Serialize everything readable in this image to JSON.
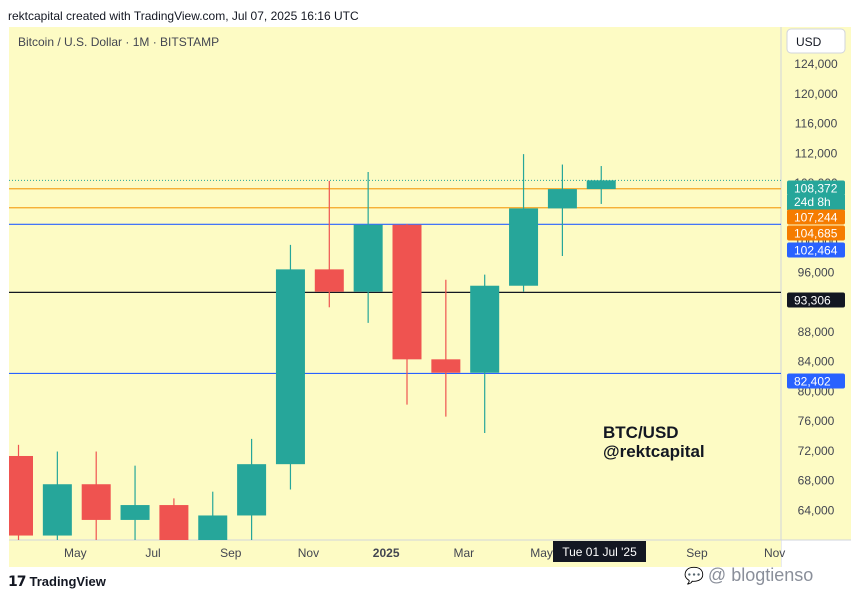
{
  "header": {
    "credit": "rektcapital created with TradingView.com, Jul 07, 2025 16:16 UTC"
  },
  "chart": {
    "symbol_label": "Bitcoin / U.S. Dollar · 1M · BITSTAMP",
    "currency_label": "USD",
    "annotation_line1": "BTC/USD",
    "annotation_line2": "@rektcapital",
    "crosshair_date": "Tue 01 Jul '25",
    "countdown": "24d 8h"
  },
  "footer": {
    "brand": "TradingView",
    "watermark": "@ blogtienso"
  },
  "colors": {
    "background": "#fdfbc4",
    "up": "#26a69a",
    "down": "#ef5350",
    "orange_line": "#f5a623",
    "blue_line": "#2962ff",
    "black_line": "#131722",
    "price_label": "#26a69a",
    "orange_label": "#f57c00"
  },
  "chart_data": {
    "type": "candlestick",
    "title": "Bitcoin / U.S. Dollar · 1M · BITSTAMP",
    "ylabel": "USD",
    "ylim": [
      60000,
      129000
    ],
    "y_ticks": [
      64000,
      68000,
      72000,
      76000,
      80000,
      84000,
      88000,
      92000,
      96000,
      100000,
      104000,
      108000,
      112000,
      116000,
      120000,
      124000
    ],
    "y_tick_labels": [
      "64,000",
      "68,000",
      "72,000",
      "76,000",
      "80,000",
      "84,000",
      "88,000",
      "92,000",
      "96,000",
      "100,000",
      "104,000",
      "108,000",
      "112,000",
      "116,000",
      "120,000",
      "124,000"
    ],
    "x_tick_labels": [
      {
        "label": "May",
        "index": 1
      },
      {
        "label": "Jul",
        "index": 3
      },
      {
        "label": "Sep",
        "index": 5
      },
      {
        "label": "Nov",
        "index": 7
      },
      {
        "label": "2025",
        "index": 9
      },
      {
        "label": "Mar",
        "index": 11
      },
      {
        "label": "May",
        "index": 13
      },
      {
        "label": "Sep",
        "index": 17
      },
      {
        "label": "Nov",
        "index": 19
      }
    ],
    "candles": [
      {
        "month": "Apr 2024",
        "open": 71300,
        "high": 72800,
        "low": 59600,
        "close": 60600
      },
      {
        "month": "May 2024",
        "open": 60600,
        "high": 71900,
        "low": 56500,
        "close": 67500
      },
      {
        "month": "Jun 2024",
        "open": 67500,
        "high": 71900,
        "low": 58400,
        "close": 62700
      },
      {
        "month": "Jul 2024",
        "open": 62700,
        "high": 70000,
        "low": 53500,
        "close": 64700
      },
      {
        "month": "Aug 2024",
        "open": 64700,
        "high": 65600,
        "low": 49000,
        "close": 59000
      },
      {
        "month": "Sep 2024",
        "open": 59000,
        "high": 66500,
        "low": 52500,
        "close": 63300
      },
      {
        "month": "Oct 2024",
        "open": 63300,
        "high": 73600,
        "low": 58900,
        "close": 70200
      },
      {
        "month": "Nov 2024",
        "open": 70200,
        "high": 99700,
        "low": 66800,
        "close": 96400
      },
      {
        "month": "Dec 2024",
        "open": 96400,
        "high": 108300,
        "low": 91300,
        "close": 93400
      },
      {
        "month": "Jan 2025",
        "open": 93400,
        "high": 109500,
        "low": 89200,
        "close": 102400
      },
      {
        "month": "Feb 2025",
        "open": 102400,
        "high": 102500,
        "low": 78200,
        "close": 84300
      },
      {
        "month": "Mar 2025",
        "open": 84300,
        "high": 95000,
        "low": 76600,
        "close": 82500
      },
      {
        "month": "Apr 2025",
        "open": 82500,
        "high": 95700,
        "low": 74400,
        "close": 94200
      },
      {
        "month": "May 2025",
        "open": 94200,
        "high": 111900,
        "low": 93400,
        "close": 104600
      },
      {
        "month": "Jun 2025",
        "open": 104600,
        "high": 110500,
        "low": 98200,
        "close": 107200
      },
      {
        "month": "Jul 2025",
        "open": 107200,
        "high": 110300,
        "low": 105200,
        "close": 108372
      }
    ],
    "horizontal_levels": [
      {
        "value": 108372,
        "label": "108,372",
        "style": "dotted",
        "color": "#26a69a",
        "label_bg": "#26a69a"
      },
      {
        "value": 107244,
        "label": "107,244",
        "style": "solid",
        "color": "#f5a623",
        "label_bg": "#f57c00"
      },
      {
        "value": 104685,
        "label": "104,685",
        "style": "solid",
        "color": "#f5a623",
        "label_bg": "#f57c00"
      },
      {
        "value": 102464,
        "label": "102,464",
        "style": "solid",
        "color": "#2962ff",
        "label_bg": "#2962ff"
      },
      {
        "value": 93306,
        "label": "93,306",
        "style": "solid",
        "color": "#131722",
        "label_bg": "#131722"
      },
      {
        "value": 82402,
        "label": "82,402",
        "style": "solid",
        "color": "#2962ff",
        "label_bg": "#2962ff"
      }
    ],
    "grid": false,
    "legend": "none"
  }
}
